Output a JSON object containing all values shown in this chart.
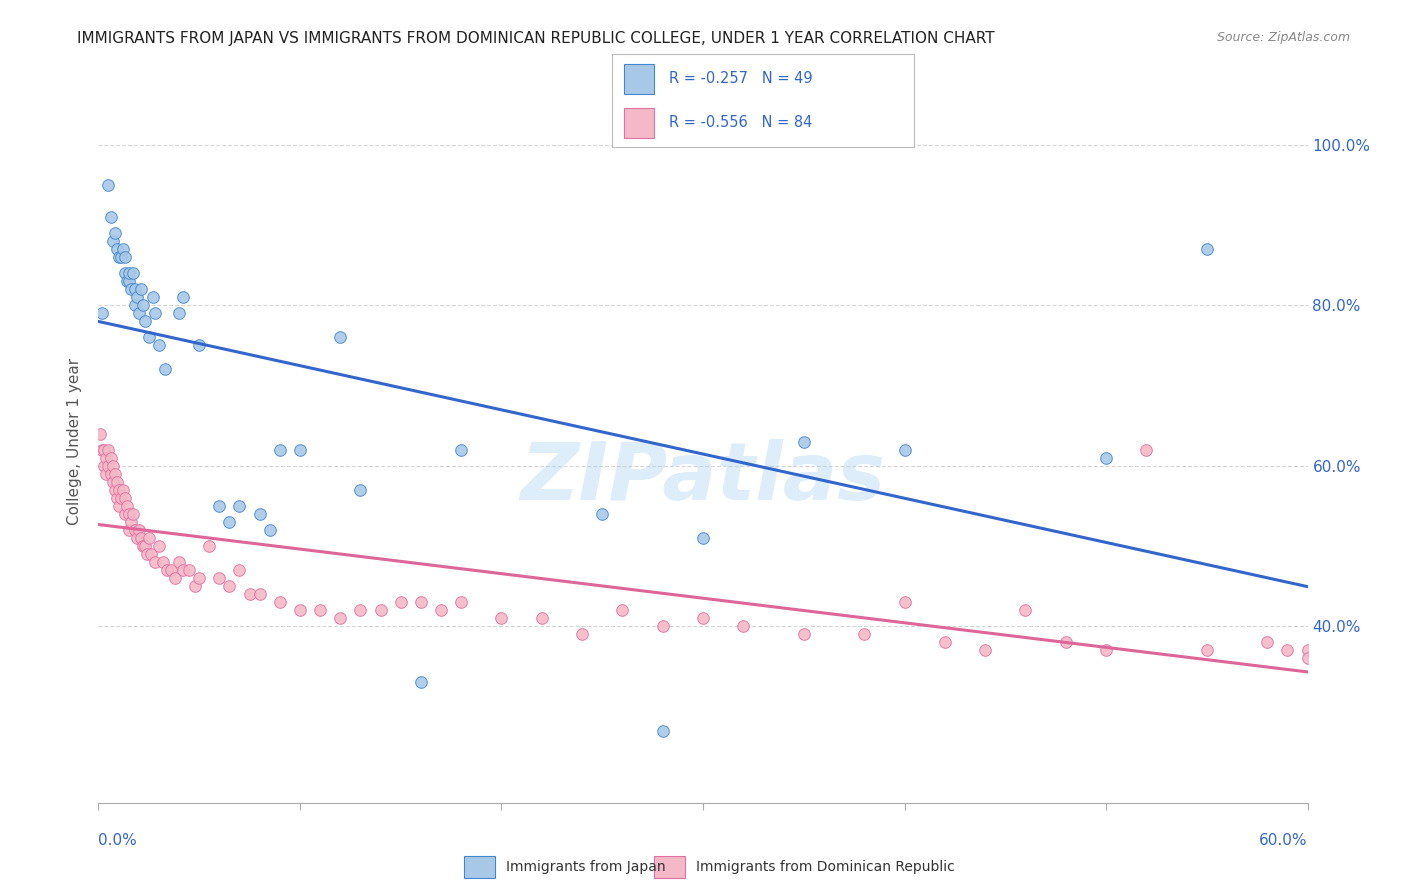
{
  "title": "IMMIGRANTS FROM JAPAN VS IMMIGRANTS FROM DOMINICAN REPUBLIC COLLEGE, UNDER 1 YEAR CORRELATION CHART",
  "source": "Source: ZipAtlas.com",
  "ylabel": "College, Under 1 year",
  "xlim": [
    0.0,
    0.6
  ],
  "ylim": [
    0.18,
    1.08
  ],
  "yticks": [
    0.4,
    0.6,
    0.8,
    1.0
  ],
  "ytick_labels": [
    "40.0%",
    "60.0%",
    "80.0%",
    "100.0%"
  ],
  "xtick_labels": [
    "0.0%",
    "60.0%"
  ],
  "legend_R1": "R = -0.257",
  "legend_N1": "N = 49",
  "legend_R2": "R = -0.556",
  "legend_N2": "N = 84",
  "color_japan_fill": "#a8c8e8",
  "color_japan_edge": "#4488cc",
  "color_dr_fill": "#f5b8c8",
  "color_dr_edge": "#e070a0",
  "color_line_japan": "#3366cc",
  "color_line_dr": "#dd6699",
  "watermark": "ZIPatlas",
  "japan_x": [
    0.002,
    0.005,
    0.006,
    0.007,
    0.008,
    0.009,
    0.01,
    0.011,
    0.012,
    0.013,
    0.013,
    0.014,
    0.015,
    0.015,
    0.016,
    0.017,
    0.018,
    0.018,
    0.019,
    0.02,
    0.021,
    0.022,
    0.023,
    0.025,
    0.027,
    0.028,
    0.03,
    0.033,
    0.04,
    0.042,
    0.05,
    0.06,
    0.065,
    0.07,
    0.08,
    0.085,
    0.09,
    0.1,
    0.12,
    0.13,
    0.16,
    0.18,
    0.25,
    0.28,
    0.3,
    0.35,
    0.4,
    0.5,
    0.55
  ],
  "japan_y": [
    0.79,
    0.95,
    0.91,
    0.88,
    0.89,
    0.87,
    0.86,
    0.86,
    0.87,
    0.86,
    0.84,
    0.83,
    0.83,
    0.84,
    0.82,
    0.84,
    0.82,
    0.8,
    0.81,
    0.79,
    0.82,
    0.8,
    0.78,
    0.76,
    0.81,
    0.79,
    0.75,
    0.72,
    0.79,
    0.81,
    0.75,
    0.55,
    0.53,
    0.55,
    0.54,
    0.52,
    0.62,
    0.62,
    0.76,
    0.57,
    0.33,
    0.62,
    0.54,
    0.27,
    0.51,
    0.63,
    0.62,
    0.61,
    0.87
  ],
  "dr_x": [
    0.001,
    0.002,
    0.003,
    0.003,
    0.004,
    0.004,
    0.005,
    0.005,
    0.006,
    0.006,
    0.007,
    0.007,
    0.008,
    0.008,
    0.009,
    0.009,
    0.01,
    0.01,
    0.011,
    0.012,
    0.013,
    0.013,
    0.014,
    0.015,
    0.015,
    0.016,
    0.017,
    0.018,
    0.019,
    0.02,
    0.021,
    0.022,
    0.023,
    0.024,
    0.025,
    0.026,
    0.028,
    0.03,
    0.032,
    0.034,
    0.036,
    0.038,
    0.04,
    0.042,
    0.045,
    0.048,
    0.05,
    0.055,
    0.06,
    0.065,
    0.07,
    0.075,
    0.08,
    0.09,
    0.1,
    0.11,
    0.12,
    0.13,
    0.14,
    0.15,
    0.16,
    0.17,
    0.18,
    0.2,
    0.22,
    0.24,
    0.26,
    0.28,
    0.3,
    0.32,
    0.35,
    0.38,
    0.4,
    0.42,
    0.44,
    0.46,
    0.48,
    0.5,
    0.52,
    0.55,
    0.58,
    0.59,
    0.6,
    0.6
  ],
  "dr_y": [
    0.64,
    0.62,
    0.62,
    0.6,
    0.61,
    0.59,
    0.62,
    0.6,
    0.61,
    0.59,
    0.6,
    0.58,
    0.59,
    0.57,
    0.58,
    0.56,
    0.57,
    0.55,
    0.56,
    0.57,
    0.56,
    0.54,
    0.55,
    0.54,
    0.52,
    0.53,
    0.54,
    0.52,
    0.51,
    0.52,
    0.51,
    0.5,
    0.5,
    0.49,
    0.51,
    0.49,
    0.48,
    0.5,
    0.48,
    0.47,
    0.47,
    0.46,
    0.48,
    0.47,
    0.47,
    0.45,
    0.46,
    0.5,
    0.46,
    0.45,
    0.47,
    0.44,
    0.44,
    0.43,
    0.42,
    0.42,
    0.41,
    0.42,
    0.42,
    0.43,
    0.43,
    0.42,
    0.43,
    0.41,
    0.41,
    0.39,
    0.42,
    0.4,
    0.41,
    0.4,
    0.39,
    0.39,
    0.43,
    0.38,
    0.37,
    0.42,
    0.38,
    0.37,
    0.62,
    0.37,
    0.38,
    0.37,
    0.37,
    0.36
  ]
}
